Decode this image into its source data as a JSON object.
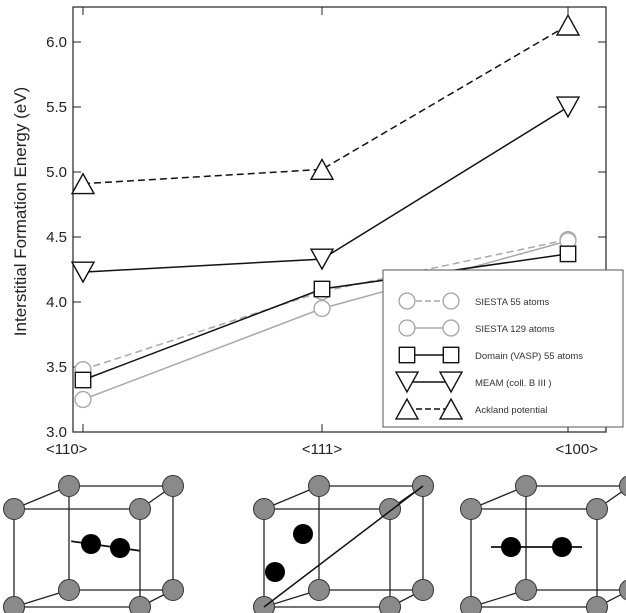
{
  "chart_data": {
    "type": "line",
    "title": "",
    "xlabel": "",
    "ylabel": "Interstitial Formation Energy (eV)",
    "categories": [
      "<110>",
      "<111>",
      "<100>"
    ],
    "ylim": [
      3.0,
      6.2
    ],
    "yticks": [
      "3.0",
      "3.5",
      "4.0",
      "4.5",
      "5.0",
      "5.5",
      "6.0"
    ],
    "grid": false,
    "legend_position": "lower-right",
    "series": [
      {
        "name": "SIESTA 55 atoms",
        "values": [
          3.48,
          4.08,
          4.48
        ],
        "marker": "circle",
        "dash": "dashed",
        "color": "#a8a8a8"
      },
      {
        "name": "SIESTA 129 atoms",
        "values": [
          3.25,
          3.95,
          4.47
        ],
        "marker": "circle",
        "dash": "solid",
        "color": "#a8a8a8"
      },
      {
        "name": "Domain (VASP) 55 atoms",
        "values": [
          3.4,
          4.1,
          4.37
        ],
        "marker": "square",
        "dash": "solid",
        "color": "#111111"
      },
      {
        "name": "MEAM (coll. B III )",
        "values": [
          4.23,
          4.33,
          5.5
        ],
        "marker": "triangle-down",
        "dash": "solid",
        "color": "#111111"
      },
      {
        "name": "Ackland potential",
        "values": [
          4.91,
          5.02,
          6.13
        ],
        "marker": "triangle-up",
        "dash": "dashed",
        "color": "#111111"
      }
    ]
  },
  "diagrams": [
    {
      "name": "<110> dumbbell"
    },
    {
      "name": "<111> dumbbell"
    },
    {
      "name": "<100> dumbbell"
    }
  ]
}
